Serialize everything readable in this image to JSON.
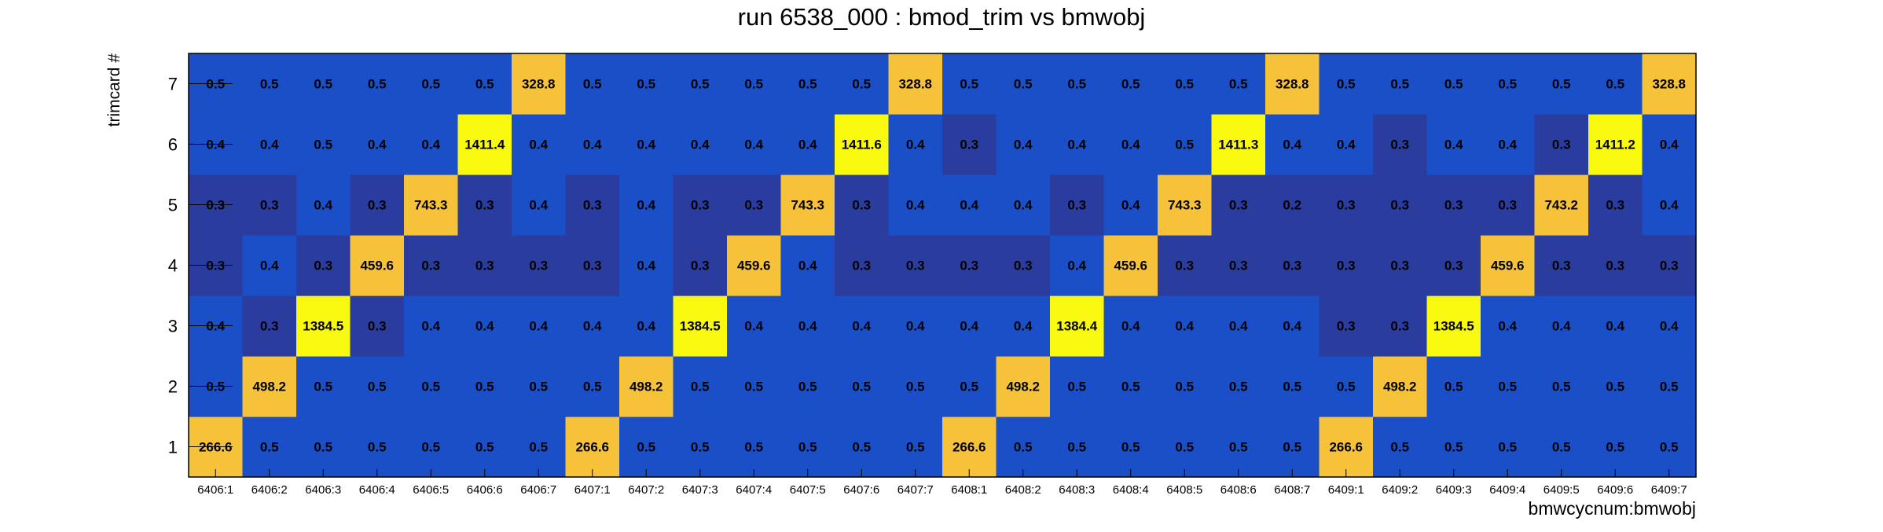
{
  "chart_data": {
    "type": "heatmap",
    "title": "run 6538_000 : bmod_trim vs bmwobj",
    "xlabel": "bmwcycnum:bmwobj",
    "ylabel": "trimcard #",
    "x_categories": [
      "6406:1",
      "6406:2",
      "6406:3",
      "6406:4",
      "6406:5",
      "6406:6",
      "6406:7",
      "6407:1",
      "6407:2",
      "6407:3",
      "6407:4",
      "6407:5",
      "6407:6",
      "6407:7",
      "6408:1",
      "6408:2",
      "6408:3",
      "6408:4",
      "6408:5",
      "6408:6",
      "6408:7",
      "6409:1",
      "6409:2",
      "6409:3",
      "6409:4",
      "6409:5",
      "6409:6",
      "6409:7"
    ],
    "y_categories": [
      "1",
      "2",
      "3",
      "4",
      "5",
      "6",
      "7"
    ],
    "values": [
      [
        266.6,
        0.5,
        0.5,
        0.5,
        0.5,
        0.5,
        0.5,
        266.6,
        0.5,
        0.5,
        0.5,
        0.5,
        0.5,
        0.5,
        266.6,
        0.5,
        0.5,
        0.5,
        0.5,
        0.5,
        0.5,
        266.6,
        0.5,
        0.5,
        0.5,
        0.5,
        0.5,
        0.5
      ],
      [
        0.5,
        498.2,
        0.5,
        0.5,
        0.5,
        0.5,
        0.5,
        0.5,
        498.2,
        0.5,
        0.5,
        0.5,
        0.5,
        0.5,
        0.5,
        498.2,
        0.5,
        0.5,
        0.5,
        0.5,
        0.5,
        0.5,
        498.2,
        0.5,
        0.5,
        0.5,
        0.5,
        0.5
      ],
      [
        0.4,
        0.3,
        1384.5,
        0.3,
        0.4,
        0.4,
        0.4,
        0.4,
        0.4,
        1384.5,
        0.4,
        0.4,
        0.4,
        0.4,
        0.4,
        0.4,
        1384.4,
        0.4,
        0.4,
        0.4,
        0.4,
        0.3,
        0.3,
        1384.5,
        0.4,
        0.4,
        0.4,
        0.4
      ],
      [
        0.3,
        0.4,
        0.3,
        459.6,
        0.3,
        0.3,
        0.3,
        0.3,
        0.4,
        0.3,
        459.6,
        0.4,
        0.3,
        0.3,
        0.3,
        0.3,
        0.4,
        459.6,
        0.3,
        0.3,
        0.3,
        0.3,
        0.3,
        0.3,
        459.6,
        0.3,
        0.3,
        0.3
      ],
      [
        0.3,
        0.3,
        0.4,
        0.3,
        743.3,
        0.3,
        0.4,
        0.3,
        0.4,
        0.3,
        0.3,
        743.3,
        0.3,
        0.4,
        0.4,
        0.4,
        0.3,
        0.4,
        743.3,
        0.3,
        0.2,
        0.3,
        0.3,
        0.3,
        0.3,
        743.2,
        0.3,
        0.4
      ],
      [
        0.4,
        0.4,
        0.5,
        0.4,
        0.4,
        1411.4,
        0.4,
        0.4,
        0.4,
        0.4,
        0.4,
        0.4,
        1411.6,
        0.4,
        0.3,
        0.4,
        0.4,
        0.4,
        0.5,
        1411.3,
        0.4,
        0.4,
        0.3,
        0.4,
        0.4,
        0.3,
        1411.2,
        0.4
      ],
      [
        0.5,
        0.5,
        0.5,
        0.5,
        0.5,
        0.5,
        328.8,
        0.5,
        0.5,
        0.5,
        0.5,
        0.5,
        0.5,
        328.8,
        0.5,
        0.5,
        0.5,
        0.5,
        0.5,
        0.5,
        328.8,
        0.5,
        0.5,
        0.5,
        0.5,
        0.5,
        0.5,
        328.8
      ]
    ],
    "colors": {
      "low_dark": "#2a3c9e",
      "low": "#1a4fc8",
      "mid": "#f5c23a",
      "high": "#f9f90f"
    },
    "grid": false,
    "legend": "none"
  }
}
